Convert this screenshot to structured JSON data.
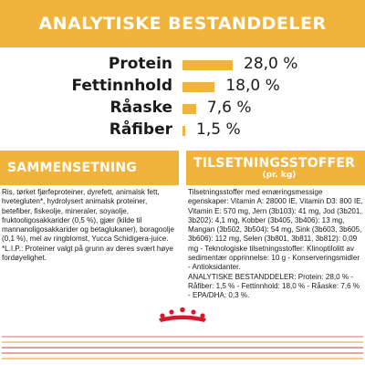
{
  "banner": {
    "title": "ANALYTISKE BESTANDDELER"
  },
  "analysis": {
    "rows": [
      {
        "label": "Protein",
        "percent": 28.0,
        "value_text": "28,0 %"
      },
      {
        "label": "Fettinnhold",
        "percent": 18.0,
        "value_text": "18,0 %"
      },
      {
        "label": "Råaske",
        "percent": 7.6,
        "value_text": "7,6 %"
      },
      {
        "label": "Råfiber",
        "percent": 1.5,
        "value_text": "1,5 %"
      }
    ],
    "bar_color": "#f0b43c"
  },
  "composition": {
    "title": "SAMMENSETNING",
    "text": "Ris, tørket fjørfeproteiner, dyrefett, animalsk fett, hvetegluten*, hydrolysert animalsk proteiner, betefiber, fiskeolje, mineraler, soyaolje, fruktooligosakkarider (0,5 %), gjær (kilde til mannanoligosakkarider og betaglukaner), boragoolje (0,1 %), mel av ringblomst, Yucca Schidigera-juice. *L.I.P.: Proteiner valgt på grunn av deres svært høye fordøyelighet."
  },
  "additives": {
    "title": "TILSETNINGSSTOFFER",
    "subtitle": "(pr. kg)",
    "text": "Tilsetningsstoffer med ernæringsmessige egenskaper: Vitamin A: 28000 IE, Vitamin D3: 800 IE, Vitamin E: 570 mg, Jern (3b103): 41 mg, Jod (3b201, 3b202): 4,1 mg, Kobber (3b405, 3b406): 13 mg, Mangan (3b502, 3b504): 54 mg, Sink (3b603, 3b605, 3b606): 112 mg, Selen (3b801, 3b811, 3b812): 0,09 mg - Teknologiske tilsetningsstoffer: Klinoptilolitt av sedimentær opprinnelse: 10 g - Konserveringsmidler - Antioksidanter.\nANALYTISKE BESTANDDELER: Protein: 28,0 % - Råfiber: 1,5 % - Fettinnhold: 18,0 % - Råaske: 7,6 % - EPA/DHA: 0,3 %."
  },
  "logo": {
    "icon": "royal-canin-crown-icon",
    "color": "#d7192d"
  },
  "footer": {
    "colors": [
      "#e8b8b8",
      "#f3cf8d",
      "#d4a3a3",
      "#e6a1a1",
      "#f2cd85"
    ]
  },
  "colors": {
    "accent": "#f0b43c",
    "text": "#1a1a1a"
  }
}
